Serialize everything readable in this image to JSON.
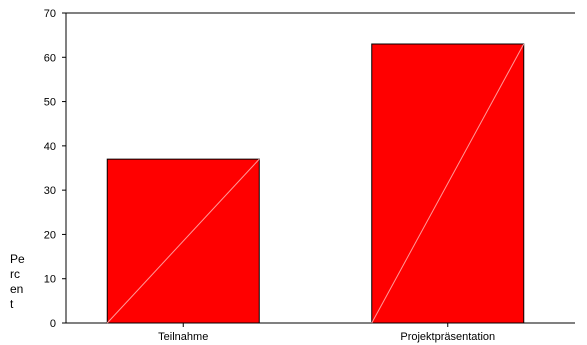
{
  "chart_data": {
    "type": "bar",
    "categories": [
      "Teilnahme",
      "Projektpräsentation"
    ],
    "values": [
      37,
      63
    ],
    "title": "",
    "xlabel": "",
    "ylabel": "Percent",
    "ylabel_lines": [
      "Pe",
      "rc",
      "en",
      "t"
    ],
    "ylim": [
      0,
      70
    ],
    "yticks": [
      "0",
      "10",
      "20",
      "30",
      "40",
      "50",
      "60",
      "70"
    ],
    "grid": false,
    "colors": {
      "bar_fill": "#ff0000",
      "bar_stroke": "#000000",
      "hatch": "#ff9999"
    }
  }
}
